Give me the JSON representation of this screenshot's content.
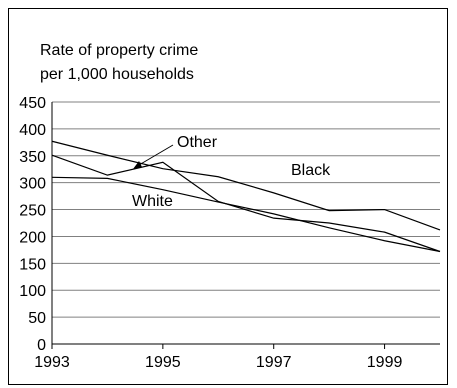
{
  "chart_data": {
    "type": "line",
    "ylabel_line1": "Rate of property crime",
    "ylabel_line2": "per 1,000 households",
    "x": [
      1993,
      1994,
      1995,
      1996,
      1997,
      1998,
      1999,
      2000
    ],
    "x_tick_labels": [
      "1993",
      "1995",
      "1997",
      "1999"
    ],
    "y_tick_labels": [
      "0",
      "50",
      "100",
      "150",
      "200",
      "250",
      "300",
      "350",
      "400",
      "450"
    ],
    "xlim": [
      1993,
      2000
    ],
    "ylim": [
      0,
      450
    ],
    "grid": true,
    "series": [
      {
        "name": "Black",
        "values": [
          377,
          351,
          326,
          311,
          281,
          248,
          250,
          212
        ]
      },
      {
        "name": "Other",
        "values": [
          351,
          314,
          338,
          265,
          234,
          225,
          208,
          172
        ]
      },
      {
        "name": "White",
        "values": [
          310,
          308,
          287,
          264,
          242,
          216,
          192,
          172
        ]
      }
    ],
    "line_color": "#000000",
    "grid_color": "#808080"
  }
}
